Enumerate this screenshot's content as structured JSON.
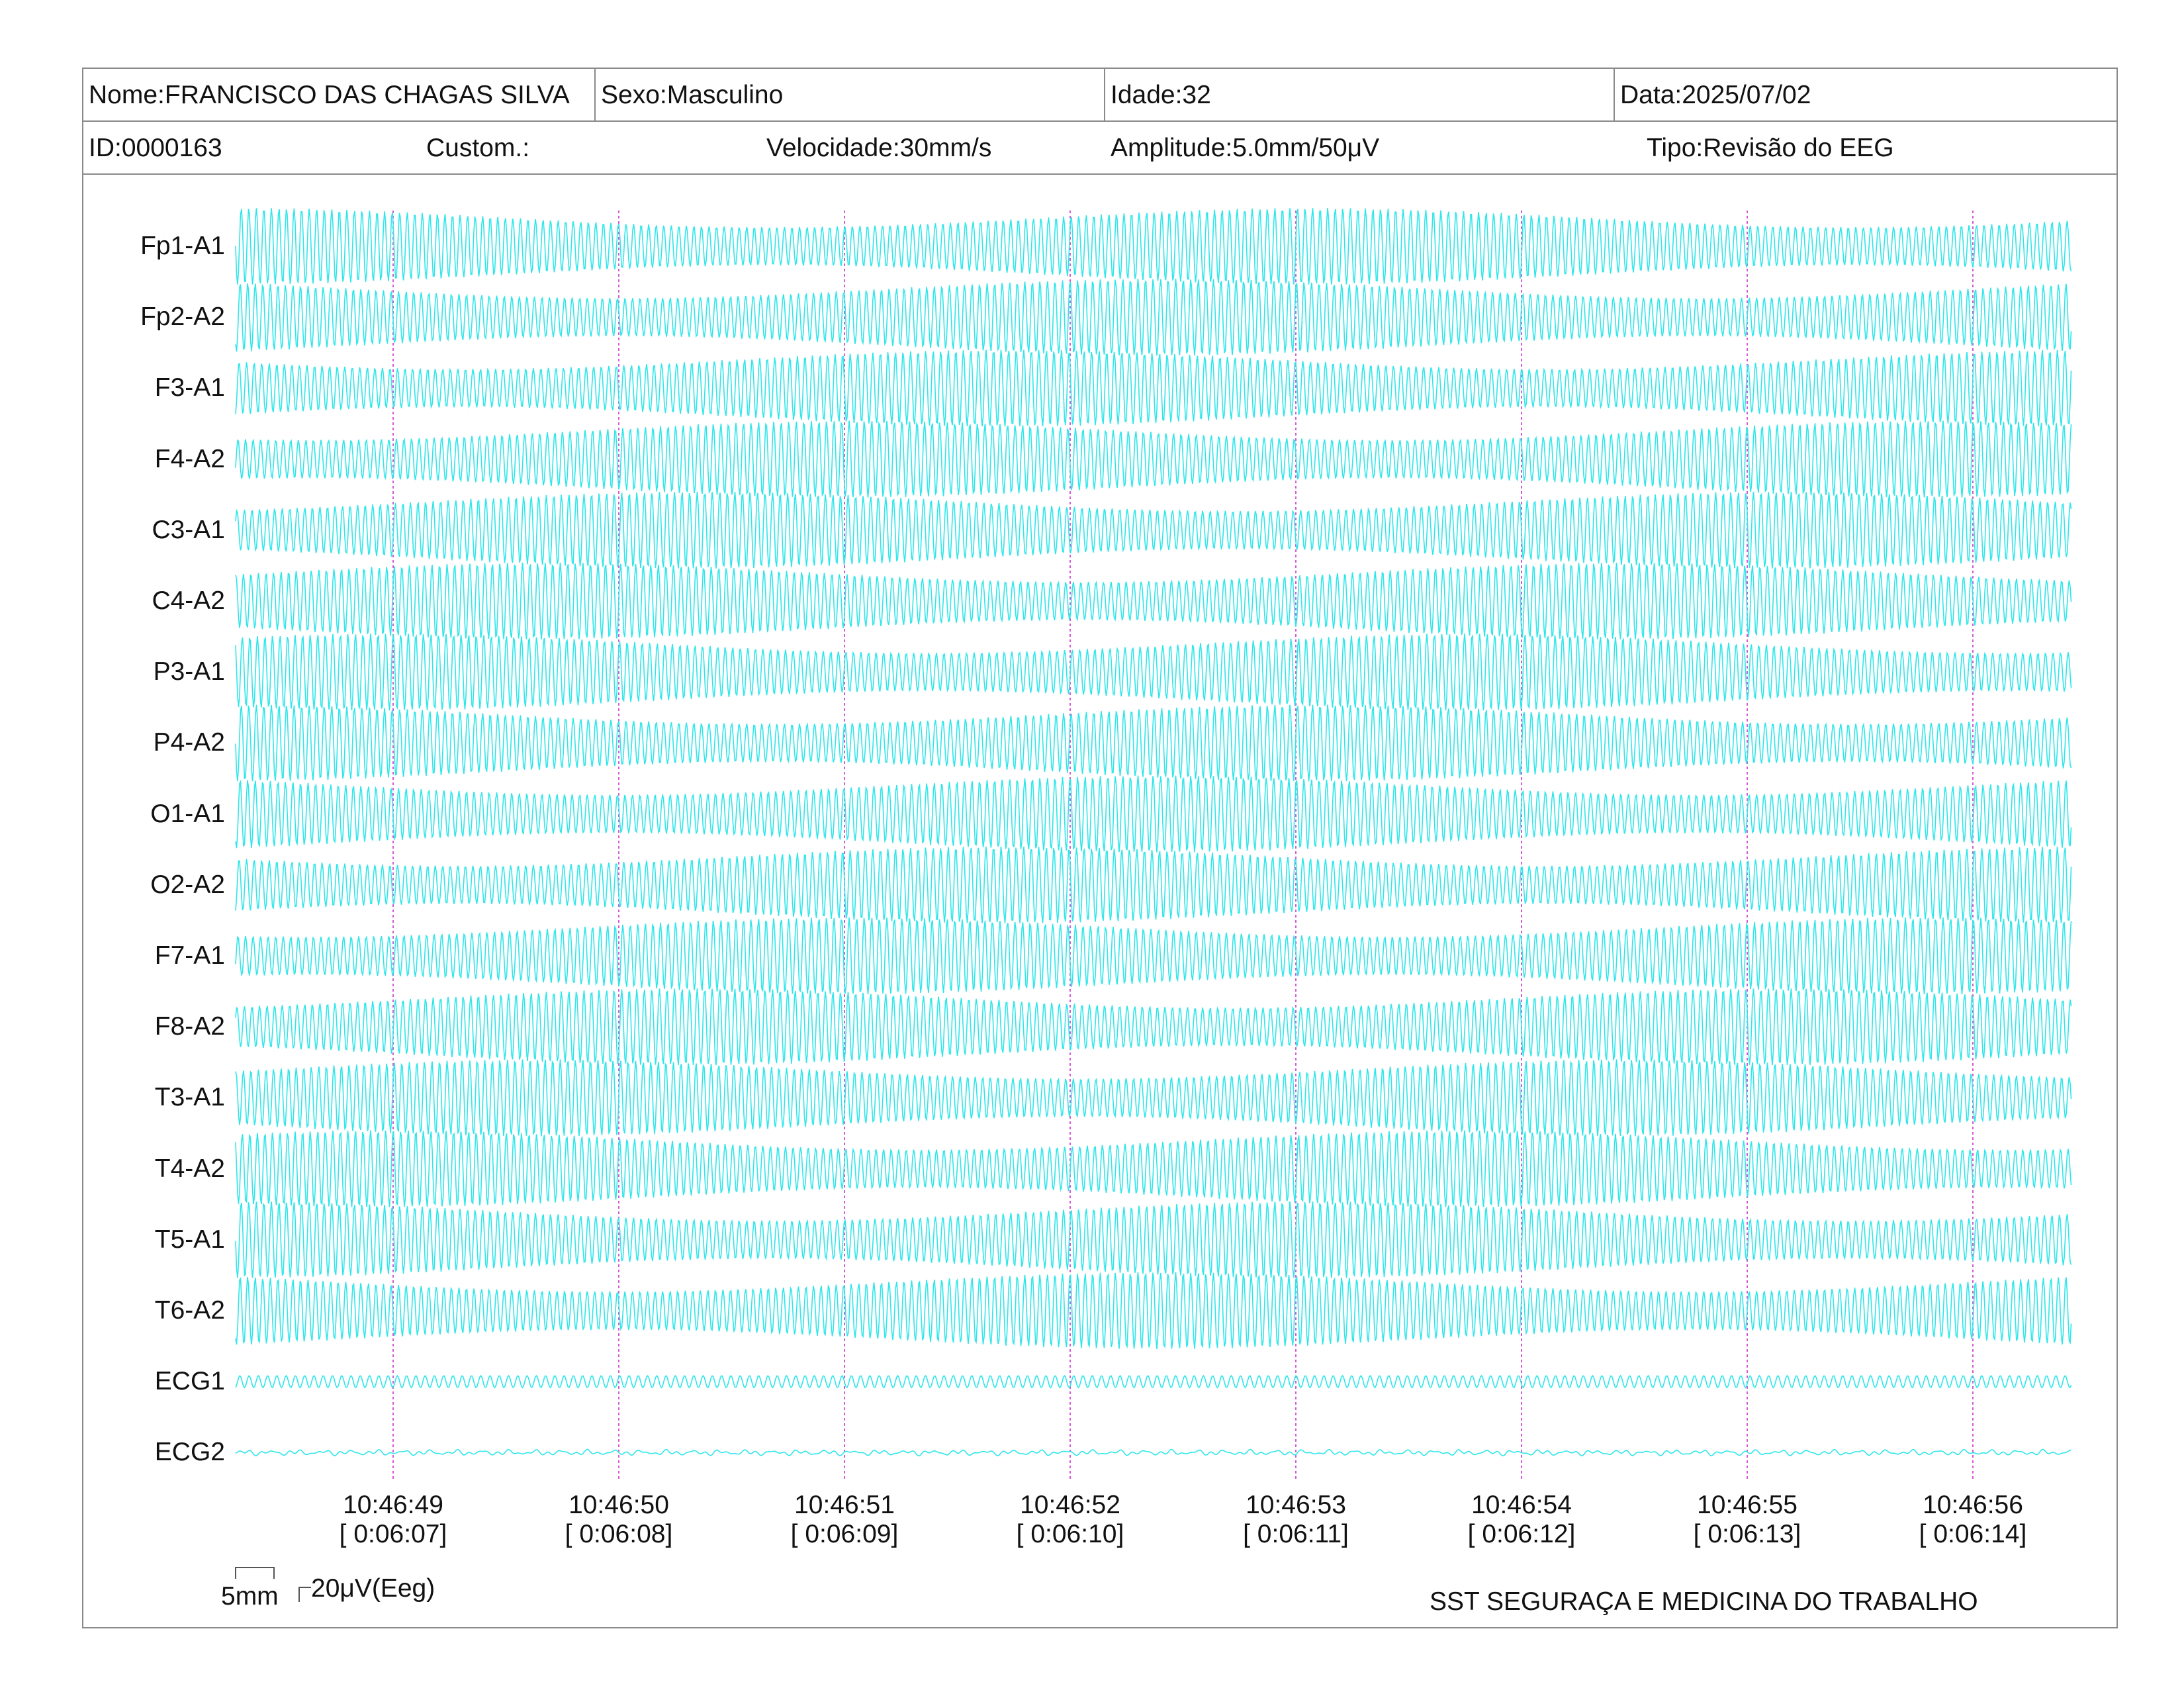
{
  "header": {
    "nome": "Nome:FRANCISCO DAS CHAGAS SILVA",
    "sexo": "Sexo:Masculino",
    "idade": "Idade:32",
    "data": "Data:2025/07/02",
    "id": "ID:0000163",
    "custom": "Custom.:",
    "velocidade": "Velocidade:30mm/s",
    "amplitude": "Amplitude:5.0mm/50μV",
    "tipo": "Tipo:Revisão do EEG"
  },
  "chart_data": {
    "type": "line",
    "channels": [
      "Fp1-A1",
      "Fp2-A2",
      "F3-A1",
      "F4-A2",
      "C3-A1",
      "C4-A2",
      "P3-A1",
      "P4-A2",
      "O1-A1",
      "O2-A2",
      "F7-A1",
      "F8-A2",
      "T3-A1",
      "T4-A2",
      "T5-A1",
      "T6-A2",
      "ECG1",
      "ECG2"
    ],
    "time_ticks": [
      {
        "time": "10:46:49",
        "elapsed": "[ 0:06:07]"
      },
      {
        "time": "10:46:50",
        "elapsed": "[ 0:06:08]"
      },
      {
        "time": "10:46:51",
        "elapsed": "[ 0:06:09]"
      },
      {
        "time": "10:46:52",
        "elapsed": "[ 0:06:10]"
      },
      {
        "time": "10:46:53",
        "elapsed": "[ 0:06:11]"
      },
      {
        "time": "10:46:54",
        "elapsed": "[ 0:06:12]"
      },
      {
        "time": "10:46:55",
        "elapsed": "[ 0:06:13]"
      },
      {
        "time": "10:46:56",
        "elapsed": "[ 0:06:14]"
      }
    ],
    "scale_bar": {
      "time_label": "5mm",
      "amp_label": "20μV(Eeg)"
    },
    "trace_color": "#2fe6ea",
    "marker_color": "#d65ad6"
  },
  "footer": {
    "organization": "SST SEGURAÇA E MEDICINA DO TRABALHO"
  }
}
